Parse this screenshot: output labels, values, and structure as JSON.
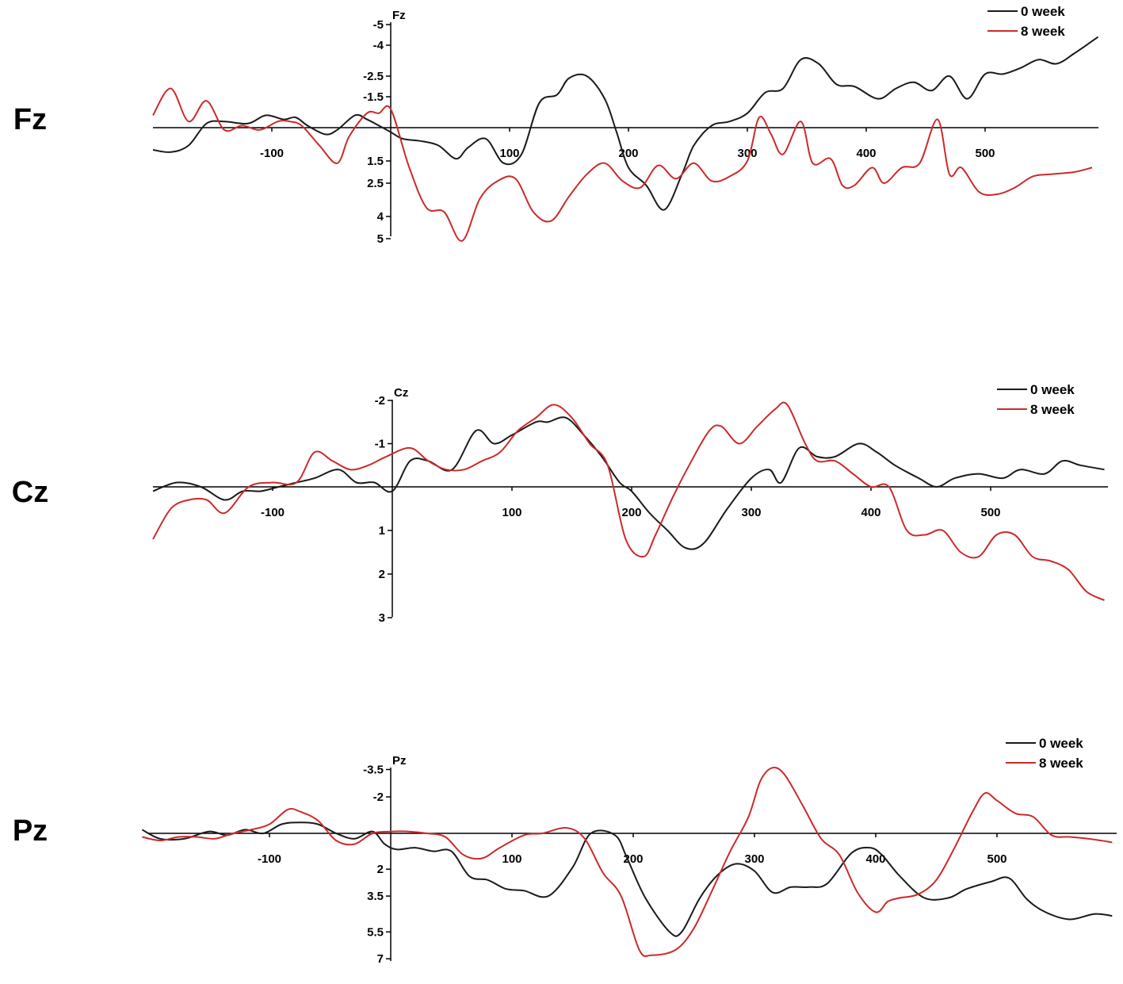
{
  "colors": {
    "week0": "#1a1a1a",
    "week8": "#cc2a2a",
    "axis": "#000000"
  },
  "chart_data": [
    {
      "type": "line",
      "row_label": "Fz",
      "channel": "Fz",
      "y_inverted": true,
      "x_ticks": [
        -100,
        100,
        200,
        300,
        400,
        500
      ],
      "y_ticks": [
        "-5",
        "-4",
        "-2.5",
        "-1.5",
        "1.5",
        "2.5",
        "4",
        "5"
      ],
      "y_tick_values": [
        -5,
        -4,
        -2.5,
        -1.5,
        1.5,
        2.5,
        4,
        5
      ],
      "ylim": [
        -5,
        5
      ],
      "xlim": [
        -200,
        595
      ],
      "series": [
        {
          "name": "0 week",
          "x": [
            -200,
            -185,
            -170,
            -155,
            -140,
            -120,
            -105,
            -90,
            -80,
            -70,
            -55,
            -45,
            -30,
            -20,
            -10,
            0,
            10,
            25,
            40,
            55,
            65,
            80,
            95,
            110,
            125,
            140,
            150,
            165,
            180,
            190,
            200,
            215,
            230,
            245,
            255,
            270,
            285,
            300,
            315,
            330,
            345,
            360,
            375,
            390,
            410,
            425,
            440,
            455,
            470,
            485,
            500,
            515,
            530,
            545,
            560,
            575,
            595
          ],
          "y": [
            1,
            1.1,
            0.8,
            -0.2,
            -0.3,
            -0.2,
            -0.6,
            -0.4,
            -0.5,
            -0.1,
            0.3,
            0.1,
            -0.6,
            -0.4,
            -0.1,
            0.2,
            0.5,
            0.6,
            0.8,
            1.4,
            0.9,
            0.5,
            1.6,
            1.2,
            -1.2,
            -1.6,
            -2.4,
            -2.5,
            -1.4,
            0.2,
            1.8,
            2.6,
            3.7,
            2.1,
            0.8,
            -0.1,
            -0.3,
            -0.7,
            -1.7,
            -1.9,
            -3.3,
            -3.1,
            -2.1,
            -2,
            -1.4,
            -1.9,
            -2.2,
            -1.8,
            -2.5,
            -1.4,
            -2.6,
            -2.6,
            -2.9,
            -3.3,
            -3.1,
            -3.6,
            -4.4
          ]
        },
        {
          "name": "8 week",
          "x": [
            -200,
            -185,
            -170,
            -155,
            -140,
            -125,
            -110,
            -95,
            -85,
            -75,
            -60,
            -45,
            -35,
            -20,
            -10,
            0,
            15,
            30,
            45,
            60,
            75,
            90,
            105,
            120,
            135,
            150,
            165,
            180,
            195,
            210,
            225,
            240,
            255,
            270,
            285,
            300,
            310,
            320,
            330,
            345,
            355,
            370,
            380,
            390,
            405,
            415,
            430,
            445,
            460,
            470,
            480,
            495,
            510,
            525,
            540,
            555,
            575,
            590
          ],
          "y": [
            -0.6,
            -1.9,
            -0.3,
            -1.3,
            0.1,
            -0.1,
            0.1,
            -0.3,
            -0.3,
            -0.1,
            0.8,
            1.6,
            0.4,
            -0.7,
            -0.7,
            -0.9,
            1.7,
            3.6,
            3.8,
            5.1,
            3.2,
            2.4,
            2.3,
            3.8,
            4.2,
            3.1,
            2.1,
            1.6,
            2.4,
            2.7,
            1.7,
            2.3,
            1.6,
            2.4,
            2.2,
            1.5,
            -0.5,
            0.3,
            1.2,
            -0.3,
            1.6,
            1.4,
            2.6,
            2.6,
            1.8,
            2.5,
            1.8,
            1.6,
            -0.4,
            2.1,
            1.8,
            2.9,
            3,
            2.7,
            2.2,
            2.1,
            2,
            1.8
          ]
        }
      ]
    },
    {
      "type": "line",
      "row_label": "Cz",
      "channel": "Cz",
      "y_inverted": true,
      "x_ticks": [
        -100,
        100,
        200,
        300,
        400,
        500
      ],
      "y_ticks": [
        "-2",
        "-1",
        "1",
        "2",
        "3"
      ],
      "y_tick_values": [
        -2,
        -1,
        1,
        2,
        3
      ],
      "ylim": [
        -2,
        3
      ],
      "xlim": [
        -200,
        595
      ],
      "series": [
        {
          "name": "0 week",
          "x": [
            -200,
            -180,
            -160,
            -140,
            -125,
            -110,
            -95,
            -80,
            -65,
            -45,
            -30,
            -15,
            0,
            15,
            30,
            50,
            70,
            85,
            100,
            120,
            130,
            145,
            160,
            175,
            190,
            200,
            215,
            230,
            245,
            260,
            280,
            300,
            315,
            325,
            340,
            355,
            370,
            390,
            405,
            420,
            440,
            455,
            470,
            490,
            510,
            525,
            545,
            560,
            575,
            595
          ],
          "y": [
            0.1,
            -0.1,
            0,
            0.3,
            0.1,
            0.1,
            0,
            -0.1,
            -0.2,
            -0.4,
            -0.1,
            -0.1,
            0.1,
            -0.6,
            -0.6,
            -0.4,
            -1.3,
            -1,
            -1.2,
            -1.5,
            -1.5,
            -1.6,
            -1.2,
            -0.7,
            -0.1,
            0.1,
            0.6,
            1,
            1.4,
            1.3,
            0.5,
            -0.2,
            -0.4,
            -0.1,
            -0.9,
            -0.7,
            -0.7,
            -1,
            -0.8,
            -0.5,
            -0.2,
            0,
            -0.2,
            -0.3,
            -0.2,
            -0.4,
            -0.3,
            -0.6,
            -0.5,
            -0.4
          ]
        },
        {
          "name": "8 week",
          "x": [
            -200,
            -185,
            -170,
            -155,
            -140,
            -120,
            -100,
            -80,
            -65,
            -50,
            -35,
            -20,
            -5,
            15,
            30,
            45,
            60,
            75,
            90,
            105,
            120,
            135,
            150,
            165,
            180,
            195,
            210,
            220,
            235,
            250,
            265,
            275,
            290,
            305,
            320,
            330,
            345,
            355,
            370,
            385,
            400,
            415,
            430,
            445,
            460,
            475,
            490,
            505,
            520,
            535,
            550,
            565,
            580,
            595
          ],
          "y": [
            1.2,
            0.5,
            0.3,
            0.3,
            0.6,
            0,
            -0.1,
            -0.1,
            -0.8,
            -0.6,
            -0.4,
            -0.5,
            -0.7,
            -0.9,
            -0.6,
            -0.4,
            -0.4,
            -0.6,
            -0.8,
            -1.3,
            -1.6,
            -1.9,
            -1.6,
            -1,
            -0.5,
            1.2,
            1.6,
            1.1,
            0.2,
            -0.6,
            -1.3,
            -1.4,
            -1,
            -1.4,
            -1.8,
            -1.9,
            -1,
            -0.6,
            -0.6,
            -0.3,
            0,
            0,
            1,
            1.1,
            1,
            1.5,
            1.6,
            1.1,
            1.1,
            1.6,
            1.7,
            1.9,
            2.4,
            2.6
          ]
        }
      ]
    },
    {
      "type": "line",
      "row_label": "Pz",
      "channel": "Pz",
      "y_inverted": true,
      "x_ticks": [
        -100,
        100,
        200,
        300,
        400,
        500
      ],
      "y_ticks": [
        "-3.5",
        "-2",
        "2",
        "3.5",
        "5.5",
        "7"
      ],
      "y_tick_values": [
        -3.5,
        -2,
        2,
        3.5,
        5.5,
        7
      ],
      "ylim": [
        -3.5,
        7
      ],
      "xlim": [
        -205,
        595
      ],
      "series": [
        {
          "name": "0 week",
          "x": [
            -205,
            -190,
            -170,
            -150,
            -135,
            -120,
            -105,
            -90,
            -75,
            -60,
            -45,
            -30,
            -15,
            -5,
            5,
            20,
            35,
            50,
            65,
            80,
            95,
            110,
            130,
            150,
            165,
            185,
            195,
            210,
            230,
            240,
            255,
            270,
            285,
            300,
            315,
            330,
            345,
            360,
            380,
            395,
            405,
            420,
            440,
            460,
            475,
            495,
            510,
            525,
            540,
            560,
            580,
            595
          ],
          "y": [
            -0.2,
            0.3,
            0.3,
            -0.1,
            0.1,
            -0.2,
            0,
            -0.5,
            -0.6,
            -0.5,
            0,
            0.3,
            -0.1,
            0.6,
            0.9,
            0.8,
            1.0,
            1.0,
            2.4,
            2.6,
            3.1,
            3.2,
            3.5,
            1.9,
            0,
            0.1,
            1.4,
            3.6,
            5.5,
            5.5,
            3.6,
            2.3,
            1.7,
            2.1,
            3.3,
            3,
            3,
            2.8,
            1.1,
            0.8,
            1.2,
            2.4,
            3.6,
            3.6,
            3.1,
            2.7,
            2.5,
            3.7,
            4.4,
            4.8,
            4.5,
            4.6
          ]
        },
        {
          "name": "8 week",
          "x": [
            -205,
            -190,
            -175,
            -160,
            -145,
            -130,
            -115,
            -100,
            -85,
            -75,
            -60,
            -45,
            -30,
            -15,
            0,
            15,
            30,
            45,
            60,
            75,
            90,
            110,
            125,
            145,
            160,
            175,
            190,
            205,
            215,
            235,
            250,
            265,
            280,
            295,
            305,
            315,
            325,
            340,
            355,
            370,
            385,
            400,
            410,
            420,
            435,
            450,
            465,
            480,
            490,
            500,
            515,
            530,
            545,
            560,
            575,
            595
          ],
          "y": [
            0.2,
            0.4,
            0.2,
            0.2,
            0.3,
            0,
            -0.2,
            -0.5,
            -1.3,
            -1.2,
            -0.7,
            0.4,
            0.6,
            0,
            -0.1,
            -0.1,
            0,
            0.2,
            1.2,
            1.4,
            0.8,
            0.1,
            0,
            -0.3,
            0.3,
            2.2,
            3.5,
            6.5,
            6.8,
            6.5,
            5.3,
            3.2,
            1,
            -0.9,
            -2.9,
            -3.6,
            -3.2,
            -1.5,
            0.3,
            1.2,
            3.3,
            4.4,
            3.8,
            3.6,
            3.4,
            2.6,
            0.8,
            -1.2,
            -2.2,
            -1.8,
            -1.1,
            -0.9,
            0.1,
            0.2,
            0.3,
            0.5
          ]
        }
      ]
    }
  ]
}
